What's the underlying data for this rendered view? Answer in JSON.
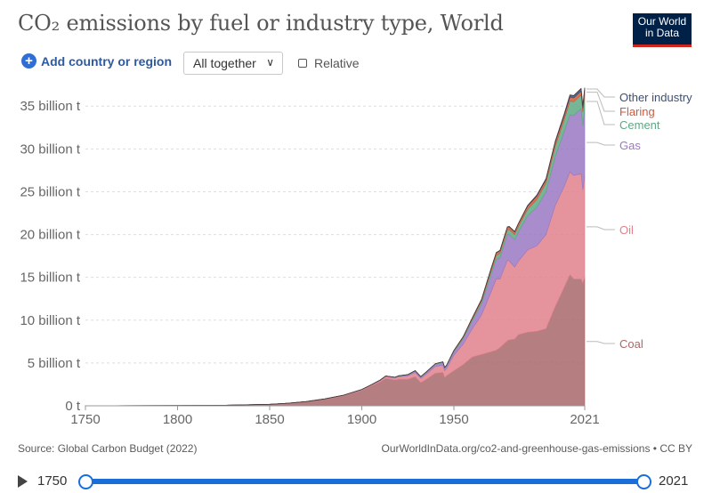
{
  "header": {
    "title": "CO₂ emissions by fuel or industry type, World",
    "logo_line1": "Our World",
    "logo_line2": "in Data"
  },
  "controls": {
    "add_label": "Add country or region",
    "select_value": "All together",
    "relative_label": "Relative"
  },
  "footer": {
    "source": "Source: Global Carbon Budget (2022)",
    "credit": "OurWorldInData.org/co2-and-greenhouse-gas-emissions • CC BY"
  },
  "timeline": {
    "start": "1750",
    "end": "2021"
  },
  "colors": {
    "coal": "#a8696b",
    "oil": "#e0818c",
    "gas": "#9a78c2",
    "cement": "#5ea884",
    "flaring": "#cf5a3c",
    "other": "#3c4f74",
    "grid": "#dddddd",
    "axis_text": "#666666"
  },
  "chart_data": {
    "type": "area",
    "stacked": true,
    "title": "CO₂ emissions by fuel or industry type, World",
    "ylim": [
      0,
      35000000000
    ],
    "xlim": [
      1750,
      2021
    ],
    "y_ticks": [
      0,
      5,
      10,
      15,
      20,
      25,
      30,
      35
    ],
    "y_tick_labels": [
      "0 t",
      "5 billion t",
      "10 billion t",
      "15 billion t",
      "20 billion t",
      "25 billion t",
      "30 billion t",
      "35 billion t"
    ],
    "x_ticks": [
      1750,
      1800,
      1850,
      1900,
      1950,
      2021
    ],
    "x_tick_labels": [
      "1750",
      "1800",
      "1850",
      "1900",
      "1950",
      "2021"
    ],
    "unit": "billion t",
    "x": [
      1750,
      1800,
      1825,
      1850,
      1860,
      1870,
      1880,
      1890,
      1900,
      1905,
      1910,
      1913,
      1918,
      1920,
      1925,
      1929,
      1932,
      1935,
      1940,
      1944,
      1945,
      1946,
      1950,
      1955,
      1960,
      1965,
      1970,
      1973,
      1975,
      1979,
      1980,
      1983,
      1985,
      1990,
      1995,
      2000,
      2005,
      2010,
      2013,
      2015,
      2019,
      2020,
      2021
    ],
    "series": [
      {
        "name": "Coal",
        "key": "coal",
        "values": [
          0.01,
          0.03,
          0.06,
          0.18,
          0.3,
          0.5,
          0.8,
          1.2,
          1.8,
          2.3,
          2.8,
          3.2,
          3.0,
          3.1,
          3.1,
          3.4,
          2.7,
          3.1,
          3.8,
          3.9,
          3.3,
          3.5,
          4.1,
          4.8,
          5.7,
          6.0,
          6.3,
          6.5,
          6.8,
          7.6,
          7.7,
          7.8,
          8.3,
          8.6,
          8.7,
          9.0,
          11.6,
          13.9,
          15.3,
          14.8,
          14.8,
          14.3,
          15.0
        ]
      },
      {
        "name": "Oil",
        "key": "oil",
        "values": [
          0,
          0,
          0,
          0,
          0,
          0,
          0.01,
          0.03,
          0.08,
          0.1,
          0.15,
          0.2,
          0.25,
          0.3,
          0.4,
          0.5,
          0.5,
          0.6,
          0.8,
          0.85,
          0.8,
          0.85,
          1.8,
          2.4,
          3.3,
          4.6,
          6.9,
          8.3,
          8.0,
          9.4,
          9.2,
          8.4,
          8.6,
          9.6,
          10.0,
          11.0,
          11.8,
          11.8,
          12.0,
          12.1,
          12.3,
          10.9,
          11.8
        ]
      },
      {
        "name": "Gas",
        "key": "gas",
        "values": [
          0,
          0,
          0,
          0,
          0,
          0,
          0,
          0,
          0.01,
          0.02,
          0.03,
          0.04,
          0.05,
          0.06,
          0.1,
          0.15,
          0.15,
          0.2,
          0.25,
          0.3,
          0.3,
          0.3,
          0.4,
          0.6,
          0.9,
          1.3,
          2.0,
          2.3,
          2.5,
          3.0,
          3.1,
          3.2,
          3.4,
          4.0,
          4.5,
          5.0,
          5.7,
          6.4,
          6.7,
          7.0,
          7.6,
          7.5,
          7.9
        ]
      },
      {
        "name": "Cement",
        "key": "cement",
        "values": [
          0,
          0,
          0,
          0,
          0,
          0,
          0,
          0.01,
          0.02,
          0.02,
          0.03,
          0.04,
          0.04,
          0.04,
          0.05,
          0.06,
          0.06,
          0.06,
          0.08,
          0.08,
          0.08,
          0.08,
          0.1,
          0.15,
          0.2,
          0.3,
          0.4,
          0.45,
          0.5,
          0.55,
          0.6,
          0.6,
          0.65,
          0.75,
          0.9,
          1.0,
          1.2,
          1.4,
          1.6,
          1.6,
          1.6,
          1.6,
          1.7
        ]
      },
      {
        "name": "Flaring",
        "key": "flaring",
        "values": [
          0,
          0,
          0,
          0,
          0,
          0,
          0,
          0,
          0,
          0,
          0,
          0,
          0,
          0,
          0,
          0,
          0,
          0,
          0,
          0,
          0,
          0,
          0.05,
          0.1,
          0.15,
          0.2,
          0.25,
          0.3,
          0.3,
          0.3,
          0.3,
          0.3,
          0.3,
          0.35,
          0.4,
          0.4,
          0.45,
          0.45,
          0.45,
          0.45,
          0.45,
          0.45,
          0.45
        ]
      },
      {
        "name": "Other industry",
        "key": "other",
        "values": [
          0,
          0,
          0,
          0,
          0,
          0,
          0,
          0,
          0,
          0,
          0,
          0,
          0,
          0,
          0,
          0,
          0,
          0,
          0,
          0,
          0,
          0,
          0.01,
          0.02,
          0.03,
          0.04,
          0.05,
          0.05,
          0.05,
          0.05,
          0.05,
          0.05,
          0.06,
          0.08,
          0.1,
          0.12,
          0.15,
          0.2,
          0.25,
          0.28,
          0.3,
          0.3,
          0.3
        ]
      }
    ],
    "legend": [
      "Other industry",
      "Flaring",
      "Cement",
      "Gas",
      "Oil",
      "Coal"
    ],
    "legend_placement": "right"
  }
}
